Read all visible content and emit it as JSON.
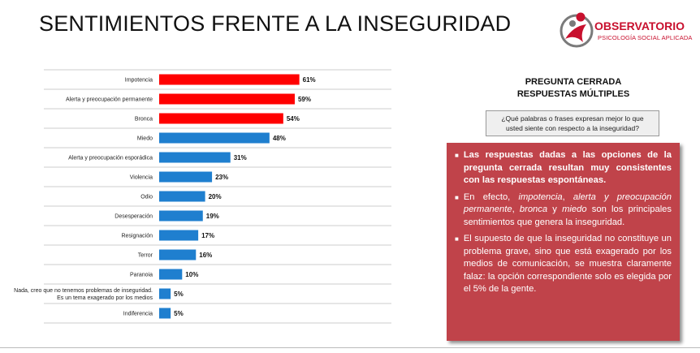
{
  "page_title": "SENTIMIENTOS FRENTE A LA INSEGURIDAD",
  "logo": {
    "name": "OBSERVATORIO",
    "subtitle": "PSICOLOGÍA SOCIAL APLICADA",
    "colors": {
      "red": "#c8102e",
      "gray": "#7a7a7a"
    }
  },
  "question": {
    "heading_line1": "PREGUNTA CERRADA",
    "heading_line2": "RESPUESTAS MÚLTIPLES",
    "prompt_line1": "¿Qué palabras o frases expresan mejor lo que",
    "prompt_line2": "usted siente con respecto a la inseguridad?"
  },
  "findings": {
    "bullet1": "Las respuestas dadas a las opciones de la pregunta cerrada resultan muy consistentes con las respuestas espontáneas.",
    "bullet2": {
      "p1": "En efecto, ",
      "w1": "impotencia",
      "p2": ", ",
      "w2": "alerta y preocupación permanente",
      "p3": ", ",
      "w3": "bronca",
      "p4": " y ",
      "w4": "miedo",
      "p5": " son los principales sentimientos que genera la inseguridad."
    },
    "bullet3": "El supuesto de que la inseguridad no constituye un problema grave, sino que está exagerado por los medios de comunicación, se muestra claramente falaz: la opción correspondiente solo es elegida por el 5% de la gente.",
    "box_color": "#c0434a"
  },
  "chart_data": {
    "type": "bar",
    "orientation": "horizontal",
    "categories": [
      "Impotencia",
      "Alerta y preocupación permanente",
      "Bronca",
      "Miedo",
      "Alerta y preocupación esporádica",
      "Violencia",
      "Odio",
      "Desesperación",
      "Resignación",
      "Terror",
      "Paranoia",
      [
        "Nada, creo que no tenemos problemas de inseguridad.",
        "Es un tema exagerado por los medios"
      ],
      "Indiferencia"
    ],
    "values": [
      61,
      59,
      54,
      48,
      31,
      23,
      20,
      19,
      17,
      16,
      10,
      5,
      5
    ],
    "value_labels": [
      "61%",
      "59%",
      "54%",
      "48%",
      "31%",
      "23%",
      "20%",
      "19%",
      "17%",
      "16%",
      "10%",
      "5%",
      "5%"
    ],
    "highlight_count": 3,
    "colors": {
      "highlight": "#ff0000",
      "default": "#1f7fcf"
    },
    "xlim": [
      0,
      100
    ],
    "grid": "horizontal lines between rows"
  }
}
